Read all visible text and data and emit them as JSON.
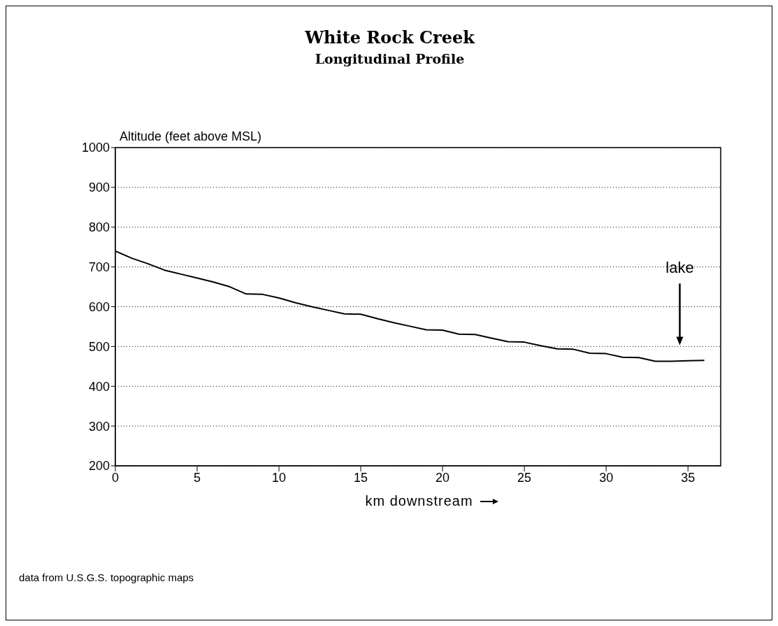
{
  "chart_data": {
    "type": "line",
    "title": "White Rock Creek",
    "subtitle": "Longitudinal Profile",
    "xlabel": "km downstream",
    "ylabel": "Altitude (feet above MSL)",
    "x": [
      0,
      1,
      2,
      3,
      4,
      5,
      6,
      7,
      8,
      9,
      10,
      11,
      12,
      13,
      14,
      15,
      16,
      17,
      18,
      19,
      20,
      21,
      22,
      23,
      24,
      25,
      26,
      27,
      28,
      29,
      30,
      31,
      32,
      33,
      34,
      35,
      36
    ],
    "series": [
      {
        "color": "#000000",
        "values": [
          740,
          722,
          708,
          692,
          682,
          672,
          662,
          650,
          632,
          631,
          622,
          610,
          600,
          591,
          582,
          581,
          570,
          560,
          551,
          542,
          541,
          531,
          530,
          521,
          512,
          511,
          502,
          494,
          493,
          483,
          482,
          473,
          472,
          463,
          463,
          464,
          465
        ]
      }
    ],
    "xlim": [
      0,
      37
    ],
    "xticks": [
      0,
      5,
      10,
      15,
      20,
      25,
      30,
      35
    ],
    "ylim": [
      200,
      1000
    ],
    "yticks": [
      200,
      300,
      400,
      500,
      600,
      700,
      800,
      900,
      1000
    ],
    "grid": "y",
    "marker": "none",
    "line_style": "solid",
    "annotations": [
      "lake",
      "data from U.S.G.S. topographic maps"
    ]
  }
}
